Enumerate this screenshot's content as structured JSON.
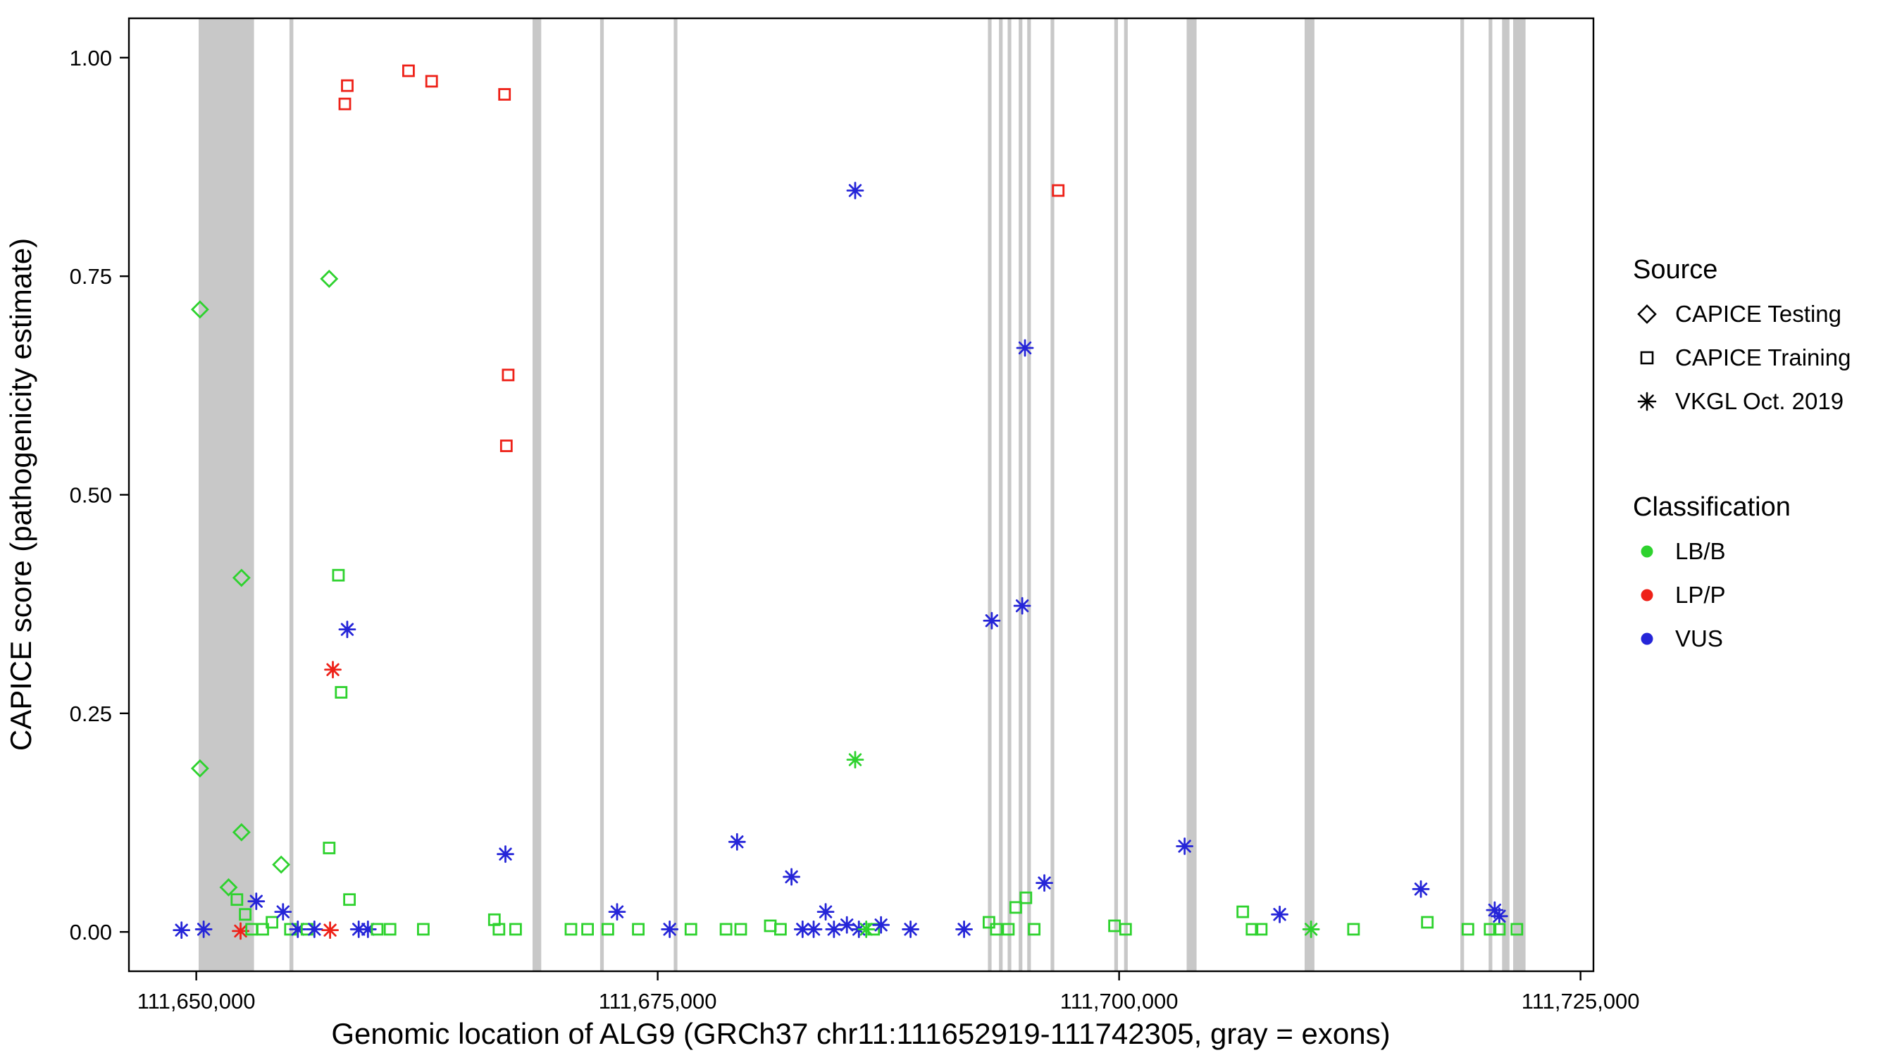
{
  "chart_data": {
    "type": "scatter",
    "title": "",
    "xlabel": "Genomic location of ALG9 (GRCh37 chr11:111652919-111742305, gray = exons)",
    "ylabel": "CAPICE score (pathogenicity estimate)",
    "xlim": [
      111646350,
      111725700
    ],
    "ylim": [
      -0.045,
      1.045
    ],
    "grid": false,
    "legend_position": "right",
    "x_ticks": [
      {
        "value": 111650000,
        "label": "111,650,000"
      },
      {
        "value": 111675000,
        "label": "111,675,000"
      },
      {
        "value": 111700000,
        "label": "111,700,000"
      },
      {
        "value": 111725000,
        "label": "111,725,000"
      }
    ],
    "y_ticks": [
      {
        "value": 0.0,
        "label": "0.00"
      },
      {
        "value": 0.25,
        "label": "0.25"
      },
      {
        "value": 0.5,
        "label": "0.50"
      },
      {
        "value": 0.75,
        "label": "0.75"
      },
      {
        "value": 1.0,
        "label": "1.00"
      }
    ],
    "exon_color": "#c8c8c8",
    "exons": [
      [
        111650130,
        111653130
      ],
      [
        111655050,
        111655260
      ],
      [
        111668220,
        111668690
      ],
      [
        111671880,
        111672080
      ],
      [
        111675870,
        111676070
      ],
      [
        111692890,
        111693090
      ],
      [
        111693490,
        111693690
      ],
      [
        111693960,
        111694160
      ],
      [
        111694560,
        111694760
      ],
      [
        111695020,
        111695220
      ],
      [
        111696290,
        111696490
      ],
      [
        111699740,
        111699940
      ],
      [
        111700270,
        111700470
      ],
      [
        111703660,
        111704200
      ],
      [
        111710050,
        111710580
      ],
      [
        111718490,
        111718690
      ],
      [
        111720020,
        111720220
      ],
      [
        111720750,
        111721150
      ],
      [
        111721350,
        111722020
      ]
    ],
    "source_shapes": {
      "CAPICE Testing": "diamond",
      "CAPICE Training": "square",
      "VKGL Oct. 2019": "asterisk"
    },
    "classification_colors": {
      "LB/B": "#2ed22e",
      "LP/P": "#ee2118",
      "VUS": "#2525d8"
    },
    "point_format": [
      "genomic_position",
      "capice_score",
      "source",
      "classification"
    ],
    "points": [
      [
        111650200,
        0.712,
        "CAPICE Testing",
        "LB/B"
      ],
      [
        111650200,
        0.187,
        "CAPICE Testing",
        "LB/B"
      ],
      [
        111649200,
        0.002,
        "VKGL Oct. 2019",
        "VUS"
      ],
      [
        111650400,
        0.003,
        "VKGL Oct. 2019",
        "VUS"
      ],
      [
        111652400,
        0.001,
        "VKGL Oct. 2019",
        "LP/P"
      ],
      [
        111651750,
        0.051,
        "CAPICE Testing",
        "LB/B"
      ],
      [
        111652450,
        0.405,
        "CAPICE Testing",
        "LB/B"
      ],
      [
        111652450,
        0.114,
        "CAPICE Testing",
        "LB/B"
      ],
      [
        111652200,
        0.037,
        "CAPICE Training",
        "LB/B"
      ],
      [
        111652650,
        0.02,
        "CAPICE Training",
        "LB/B"
      ],
      [
        111653000,
        0.003,
        "CAPICE Training",
        "LB/B"
      ],
      [
        111653250,
        0.035,
        "VKGL Oct. 2019",
        "VUS"
      ],
      [
        111653600,
        0.003,
        "CAPICE Training",
        "LB/B"
      ],
      [
        111654100,
        0.011,
        "CAPICE Training",
        "LB/B"
      ],
      [
        111654700,
        0.023,
        "VKGL Oct. 2019",
        "VUS"
      ],
      [
        111654600,
        0.077,
        "CAPICE Testing",
        "LB/B"
      ],
      [
        111655100,
        0.003,
        "CAPICE Training",
        "LB/B"
      ],
      [
        111655500,
        0.003,
        "VKGL Oct. 2019",
        "VUS"
      ],
      [
        111656000,
        0.003,
        "CAPICE Training",
        "LB/B"
      ],
      [
        111656400,
        0.003,
        "VKGL Oct. 2019",
        "VUS"
      ],
      [
        111657200,
        0.747,
        "CAPICE Testing",
        "LB/B"
      ],
      [
        111657200,
        0.096,
        "CAPICE Training",
        "LB/B"
      ],
      [
        111657250,
        0.002,
        "VKGL Oct. 2019",
        "LP/P"
      ],
      [
        111657700,
        0.408,
        "CAPICE Training",
        "LB/B"
      ],
      [
        111657850,
        0.274,
        "CAPICE Training",
        "LB/B"
      ],
      [
        111658180,
        0.968,
        "CAPICE Training",
        "LP/P"
      ],
      [
        111658050,
        0.947,
        "CAPICE Training",
        "LP/P"
      ],
      [
        111658180,
        0.346,
        "VKGL Oct. 2019",
        "VUS"
      ],
      [
        111657400,
        0.3,
        "VKGL Oct. 2019",
        "LP/P"
      ],
      [
        111658300,
        0.037,
        "CAPICE Training",
        "LB/B"
      ],
      [
        111658800,
        0.003,
        "VKGL Oct. 2019",
        "VUS"
      ],
      [
        111659300,
        0.003,
        "VKGL Oct. 2019",
        "VUS"
      ],
      [
        111659800,
        0.003,
        "CAPICE Training",
        "LB/B"
      ],
      [
        111660500,
        0.003,
        "CAPICE Training",
        "LB/B"
      ],
      [
        111661500,
        0.985,
        "CAPICE Training",
        "LP/P"
      ],
      [
        111662750,
        0.973,
        "CAPICE Training",
        "LP/P"
      ],
      [
        111662300,
        0.003,
        "CAPICE Training",
        "LB/B"
      ],
      [
        111666700,
        0.958,
        "CAPICE Training",
        "LP/P"
      ],
      [
        111666900,
        0.637,
        "CAPICE Training",
        "LP/P"
      ],
      [
        111666800,
        0.556,
        "CAPICE Training",
        "LP/P"
      ],
      [
        111666750,
        0.089,
        "VKGL Oct. 2019",
        "VUS"
      ],
      [
        111666150,
        0.014,
        "CAPICE Training",
        "LB/B"
      ],
      [
        111666400,
        0.003,
        "CAPICE Training",
        "LB/B"
      ],
      [
        111667300,
        0.003,
        "CAPICE Training",
        "LB/B"
      ],
      [
        111670300,
        0.003,
        "CAPICE Training",
        "LB/B"
      ],
      [
        111671200,
        0.003,
        "CAPICE Training",
        "LB/B"
      ],
      [
        111672300,
        0.003,
        "CAPICE Training",
        "LB/B"
      ],
      [
        111672800,
        0.023,
        "VKGL Oct. 2019",
        "VUS"
      ],
      [
        111673950,
        0.003,
        "CAPICE Training",
        "LB/B"
      ],
      [
        111675650,
        0.003,
        "VKGL Oct. 2019",
        "VUS"
      ],
      [
        111676800,
        0.003,
        "CAPICE Training",
        "LB/B"
      ],
      [
        111678700,
        0.003,
        "CAPICE Training",
        "LB/B"
      ],
      [
        111679500,
        0.003,
        "CAPICE Training",
        "LB/B"
      ],
      [
        111679300,
        0.103,
        "VKGL Oct. 2019",
        "VUS"
      ],
      [
        111682250,
        0.063,
        "VKGL Oct. 2019",
        "VUS"
      ],
      [
        111681100,
        0.007,
        "CAPICE Training",
        "LB/B"
      ],
      [
        111681650,
        0.003,
        "CAPICE Training",
        "LB/B"
      ],
      [
        111682850,
        0.003,
        "VKGL Oct. 2019",
        "VUS"
      ],
      [
        111683450,
        0.003,
        "VKGL Oct. 2019",
        "VUS"
      ],
      [
        111684100,
        0.023,
        "VKGL Oct. 2019",
        "VUS"
      ],
      [
        111684550,
        0.003,
        "VKGL Oct. 2019",
        "VUS"
      ],
      [
        111685700,
        0.197,
        "VKGL Oct. 2019",
        "LB/B"
      ],
      [
        111685700,
        0.848,
        "VKGL Oct. 2019",
        "VUS"
      ],
      [
        111685250,
        0.008,
        "VKGL Oct. 2019",
        "VUS"
      ],
      [
        111685900,
        0.003,
        "VKGL Oct. 2019",
        "VUS"
      ],
      [
        111686300,
        0.003,
        "VKGL Oct. 2019",
        "LB/B"
      ],
      [
        111686700,
        0.003,
        "CAPICE Training",
        "LB/B"
      ],
      [
        111687100,
        0.008,
        "VKGL Oct. 2019",
        "VUS"
      ],
      [
        111688700,
        0.003,
        "VKGL Oct. 2019",
        "VUS"
      ],
      [
        111691600,
        0.003,
        "VKGL Oct. 2019",
        "VUS"
      ],
      [
        111692950,
        0.011,
        "CAPICE Training",
        "LB/B"
      ],
      [
        111693350,
        0.003,
        "CAPICE Training",
        "LB/B"
      ],
      [
        111693100,
        0.356,
        "VKGL Oct. 2019",
        "VUS"
      ],
      [
        111694750,
        0.373,
        "VKGL Oct. 2019",
        "VUS"
      ],
      [
        111694900,
        0.668,
        "VKGL Oct. 2019",
        "VUS"
      ],
      [
        111694400,
        0.028,
        "CAPICE Training",
        "LB/B"
      ],
      [
        111694950,
        0.039,
        "CAPICE Training",
        "LB/B"
      ],
      [
        111695950,
        0.056,
        "VKGL Oct. 2019",
        "VUS"
      ],
      [
        111694000,
        0.003,
        "CAPICE Training",
        "LB/B"
      ],
      [
        111695400,
        0.003,
        "CAPICE Training",
        "LB/B"
      ],
      [
        111696700,
        0.848,
        "CAPICE Training",
        "LP/P"
      ],
      [
        111699750,
        0.007,
        "CAPICE Training",
        "LB/B"
      ],
      [
        111700350,
        0.003,
        "CAPICE Training",
        "LB/B"
      ],
      [
        111703550,
        0.098,
        "VKGL Oct. 2019",
        "VUS"
      ],
      [
        111706700,
        0.023,
        "CAPICE Training",
        "LB/B"
      ],
      [
        111707200,
        0.003,
        "CAPICE Training",
        "LB/B"
      ],
      [
        111707700,
        0.003,
        "CAPICE Training",
        "LB/B"
      ],
      [
        111708700,
        0.02,
        "VKGL Oct. 2019",
        "VUS"
      ],
      [
        111710400,
        0.003,
        "VKGL Oct. 2019",
        "LB/B"
      ],
      [
        111712700,
        0.003,
        "CAPICE Training",
        "LB/B"
      ],
      [
        111716350,
        0.049,
        "VKGL Oct. 2019",
        "VUS"
      ],
      [
        111716700,
        0.011,
        "CAPICE Training",
        "LB/B"
      ],
      [
        111718900,
        0.003,
        "CAPICE Training",
        "LB/B"
      ],
      [
        111720350,
        0.025,
        "VKGL Oct. 2019",
        "VUS"
      ],
      [
        111720600,
        0.018,
        "VKGL Oct. 2019",
        "VUS"
      ],
      [
        111720100,
        0.003,
        "CAPICE Training",
        "LB/B"
      ],
      [
        111720600,
        0.003,
        "CAPICE Training",
        "LB/B"
      ],
      [
        111721550,
        0.003,
        "CAPICE Training",
        "LB/B"
      ]
    ]
  },
  "legend": {
    "source": {
      "title": "Source",
      "items": [
        {
          "label": "CAPICE Testing",
          "shape": "diamond"
        },
        {
          "label": "CAPICE Training",
          "shape": "square"
        },
        {
          "label": "VKGL Oct. 2019",
          "shape": "asterisk"
        }
      ]
    },
    "classification": {
      "title": "Classification",
      "items": [
        {
          "label": "LB/B",
          "color": "#2ed22e"
        },
        {
          "label": "LP/P",
          "color": "#ee2118"
        },
        {
          "label": "VUS",
          "color": "#2525d8"
        }
      ]
    }
  }
}
